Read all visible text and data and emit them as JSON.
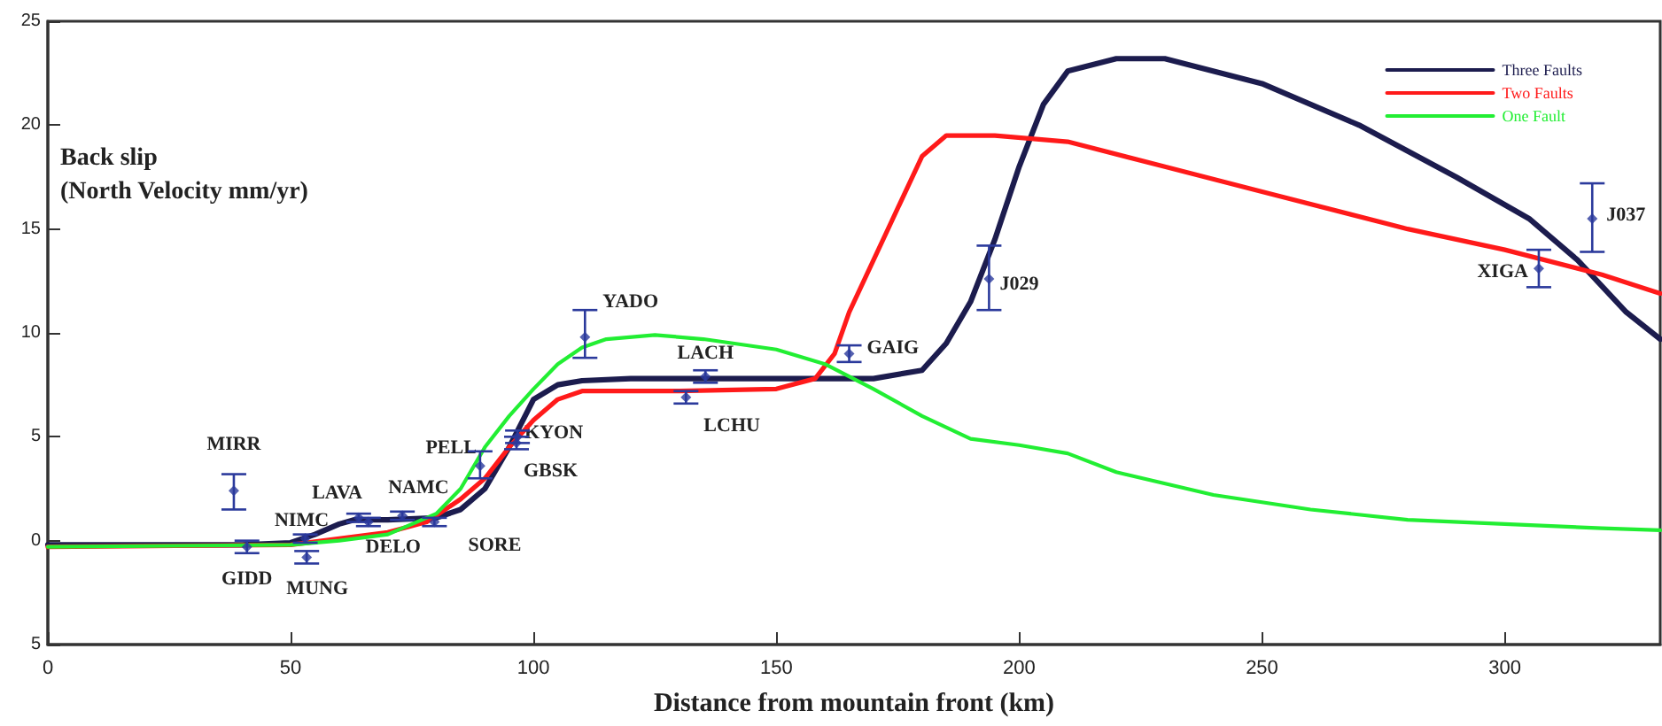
{
  "chart_data": {
    "type": "line",
    "xlabel": "Distance from mountain front (km)",
    "ylabel": "Back slip\n(North Velocity mm/yr)",
    "xlim": [
      0,
      332
    ],
    "xticks": [
      0,
      50,
      100,
      150,
      200,
      250,
      300
    ],
    "ylim": [
      -5,
      25
    ],
    "yticks": [
      {
        "value": -5,
        "label": "5"
      },
      0,
      5,
      10,
      15,
      20,
      25
    ],
    "grid": false,
    "legend": "top right",
    "marker": "none",
    "line_style": "solid",
    "series": [
      {
        "name": "Three Faults",
        "color": "#1c1c4e",
        "x": [
          0,
          40,
          50,
          55,
          60,
          63,
          70,
          80,
          85,
          90,
          95,
          100,
          105,
          110,
          120,
          150,
          170,
          180,
          185,
          190,
          195,
          200,
          205,
          210,
          220,
          230,
          250,
          270,
          290,
          305,
          315,
          325,
          332
        ],
        "values": [
          -0.2,
          -0.2,
          -0.1,
          0.3,
          0.8,
          1.0,
          1.0,
          1.1,
          1.5,
          2.5,
          4.5,
          6.8,
          7.5,
          7.7,
          7.8,
          7.8,
          7.8,
          8.2,
          9.5,
          11.5,
          14.5,
          18,
          21,
          22.6,
          23.2,
          23.2,
          22,
          20,
          17.5,
          15.5,
          13.5,
          11,
          9.7
        ]
      },
      {
        "name": "Two Faults",
        "color": "#ff1a1a",
        "x": [
          0,
          50,
          60,
          70,
          78,
          85,
          90,
          95,
          100,
          105,
          110,
          120,
          130,
          150,
          158,
          162,
          165,
          170,
          175,
          180,
          185,
          195,
          210,
          230,
          250,
          280,
          300,
          320,
          332
        ],
        "values": [
          -0.3,
          -0.2,
          0.1,
          0.4,
          0.9,
          2,
          3,
          4.5,
          5.8,
          6.8,
          7.2,
          7.2,
          7.2,
          7.3,
          7.8,
          9,
          11,
          13.5,
          16,
          18.5,
          19.5,
          19.5,
          19.2,
          18,
          16.8,
          15,
          14,
          12.8,
          11.9
        ]
      },
      {
        "name": "One Fault",
        "color": "#22ee33",
        "x": [
          0,
          50,
          60,
          70,
          80,
          85,
          90,
          95,
          100,
          105,
          110,
          115,
          125,
          135,
          150,
          160,
          170,
          180,
          190,
          200,
          210,
          220,
          240,
          260,
          280,
          300,
          320,
          332
        ],
        "values": [
          -0.3,
          -0.2,
          0,
          0.3,
          1.3,
          2.5,
          4.5,
          6,
          7.3,
          8.5,
          9.3,
          9.7,
          9.9,
          9.7,
          9.2,
          8.5,
          7.3,
          6,
          4.9,
          4.6,
          4.2,
          3.3,
          2.2,
          1.5,
          1.0,
          0.8,
          0.6,
          0.5
        ]
      },
      {
        "type": "scatter",
        "marker": "diamond",
        "color": "#2b3a9c",
        "x": [
          38.3,
          41,
          53,
          53.3,
          64,
          66,
          73,
          79.6,
          89,
          96.7,
          96.5,
          110.6,
          135.4,
          131.4,
          165,
          193.8,
          307,
          318
        ],
        "values": [
          2.4,
          -0.3,
          0.1,
          -0.8,
          1.1,
          0.9,
          1.2,
          0.9,
          3.6,
          5.0,
          4.7,
          9.8,
          7.9,
          6.9,
          9.0,
          12.6,
          13.1,
          15.5
        ],
        "errors": [
          [
            1.5,
            3.2
          ],
          0.3,
          0.2,
          0.3,
          0.2,
          0.2,
          0.2,
          0.2,
          [
            3.0,
            4.3
          ],
          0.3,
          0.3,
          [
            8.8,
            11.1
          ],
          0.3,
          0.3,
          0.4,
          [
            11.1,
            14.2
          ],
          [
            12.2,
            14.0
          ],
          [
            13.9,
            17.2
          ]
        ]
      }
    ],
    "annotations": [
      {
        "text": "MIRR",
        "x": 38.3,
        "y": 2.4
      },
      {
        "text": "GIDD",
        "x": 41,
        "y": -0.3
      },
      {
        "text": "NIMC",
        "x": 53,
        "y": 0.1
      },
      {
        "text": "MUNG",
        "x": 53.3,
        "y": -0.8
      },
      {
        "text": "LAVA",
        "x": 64,
        "y": 1.1
      },
      {
        "text": "DELO",
        "x": 66,
        "y": 0.9
      },
      {
        "text": "NAMC",
        "x": 73,
        "y": 1.2
      },
      {
        "text": "SORE",
        "x": 79.6,
        "y": 0.9
      },
      {
        "text": "PELL",
        "x": 89,
        "y": 3.6
      },
      {
        "text": "KYON",
        "x": 96.7,
        "y": 5.0
      },
      {
        "text": "GBSK",
        "x": 96.5,
        "y": 4.7
      },
      {
        "text": "YADO",
        "x": 110.6,
        "y": 9.8
      },
      {
        "text": "LACH",
        "x": 135.4,
        "y": 7.9
      },
      {
        "text": "LCHU",
        "x": 131.4,
        "y": 6.9
      },
      {
        "text": "GAIG",
        "x": 165,
        "y": 9.0
      },
      {
        "text": "J029",
        "x": 193.8,
        "y": 12.6
      },
      {
        "text": "XIGA",
        "x": 307,
        "y": 13.1
      },
      {
        "text": "J037",
        "x": 318,
        "y": 15.5
      }
    ]
  }
}
